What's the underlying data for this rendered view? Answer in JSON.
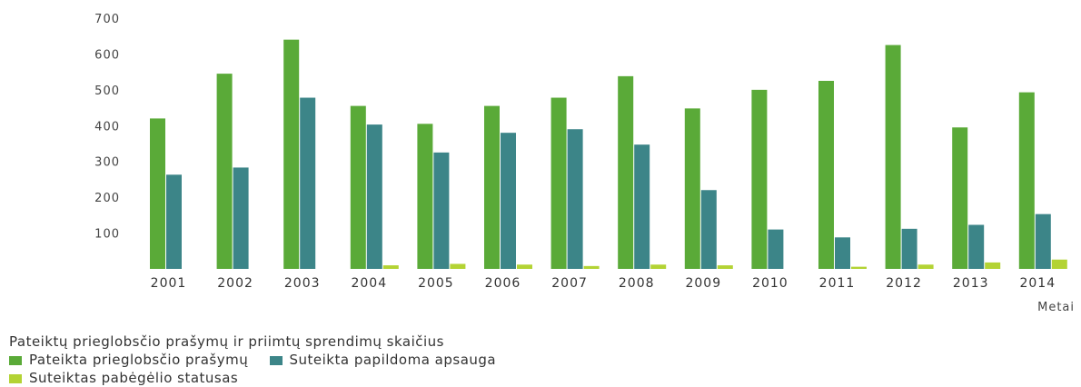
{
  "chart_data": {
    "type": "bar",
    "categories": [
      "2001",
      "2002",
      "2003",
      "2004",
      "2005",
      "2006",
      "2007",
      "2008",
      "2009",
      "2010",
      "2011",
      "2012",
      "2013",
      "2014"
    ],
    "series": [
      {
        "name": "Pateikta prieglobsčio prašymų",
        "color": "#5aaa38",
        "values": [
          420,
          545,
          640,
          455,
          405,
          455,
          478,
          538,
          448,
          500,
          525,
          625,
          395,
          493
        ]
      },
      {
        "name": "Suteikta papildoma apsauga",
        "color": "#3c8588",
        "values": [
          263,
          283,
          478,
          403,
          325,
          380,
          390,
          347,
          220,
          110,
          88,
          112,
          123,
          153
        ]
      },
      {
        "name": "Suteiktas pabėgėlio statusas",
        "color": "#b3d334",
        "values": [
          0,
          0,
          0,
          10,
          14,
          12,
          8,
          12,
          10,
          0,
          6,
          12,
          18,
          26
        ]
      }
    ],
    "yticks": [
      100,
      200,
      300,
      400,
      500,
      600,
      700
    ],
    "ylim": [
      0,
      700
    ],
    "xlabel": "Metai",
    "ylabel": "",
    "title": "Pateiktų prieglobsčio prašymų ir priimtų sprendimų skaičius",
    "legend_position": "bottom-left",
    "grid": false
  }
}
